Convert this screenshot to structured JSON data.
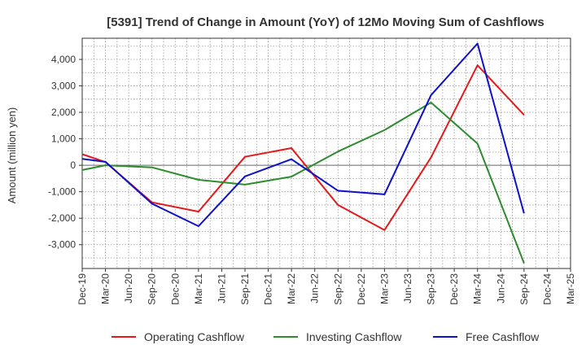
{
  "chart_data": {
    "type": "line",
    "title": "[5391]  Trend of Change in Amount (YoY) of 12Mo Moving Sum of Cashflows",
    "xlabel": "",
    "ylabel": "Amount (million yen)",
    "ylim": [
      -3900,
      4800
    ],
    "yticks": [
      -3000,
      -2000,
      -1000,
      0,
      1000,
      2000,
      3000,
      4000
    ],
    "ytick_labels": [
      "-3,000",
      "-2,000",
      "-1,000",
      "0",
      "1,000",
      "2,000",
      "3,000",
      "4,000"
    ],
    "categories": [
      "Dec-19",
      "Mar-20",
      "Jun-20",
      "Sep-20",
      "Dec-20",
      "Mar-21",
      "Jun-21",
      "Sep-21",
      "Dec-21",
      "Mar-22",
      "Jun-22",
      "Sep-22",
      "Dec-22",
      "Mar-23",
      "Jun-23",
      "Sep-23",
      "Dec-23",
      "Mar-24",
      "Jun-24",
      "Sep-24",
      "Dec-24",
      "Mar-25"
    ],
    "grid": true,
    "legend_position": "bottom",
    "series": [
      {
        "name": "Operating Cashflow",
        "color": "#e31a1c",
        "values": [
          420,
          120,
          null,
          -1400,
          null,
          -1750,
          null,
          320,
          null,
          650,
          null,
          -1500,
          null,
          -2450,
          null,
          300,
          null,
          3780,
          null,
          1900,
          null,
          null
        ]
      },
      {
        "name": "Investing Cashflow",
        "color": "#2e8b2e",
        "values": [
          -180,
          0,
          null,
          -80,
          null,
          -550,
          null,
          -730,
          null,
          -430,
          null,
          520,
          null,
          1330,
          null,
          2370,
          null,
          820,
          null,
          -3700,
          null,
          null
        ]
      },
      {
        "name": "Free Cashflow",
        "color": "#1010c8",
        "values": [
          240,
          130,
          null,
          -1450,
          null,
          -2300,
          null,
          -420,
          null,
          230,
          null,
          -960,
          null,
          -1100,
          null,
          2650,
          null,
          4600,
          null,
          -1820,
          null,
          null
        ]
      }
    ]
  }
}
